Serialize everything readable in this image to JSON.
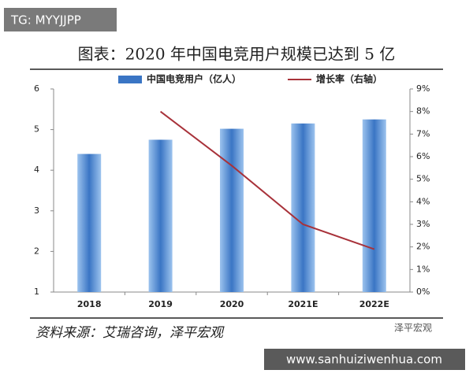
{
  "tag": "TG: MYYJJPP",
  "watermark": "泽平宏观",
  "url": "www.sanhuiziwenhua.com",
  "chart_data": {
    "type": "bar-line",
    "title": "图表：2020 年中国电竞用户规模已达到 5 亿",
    "source": "资料来源：艾瑞咨询，泽平宏观",
    "categories": [
      "2018",
      "2019",
      "2020",
      "2021E",
      "2022E"
    ],
    "series": [
      {
        "name": "中国电竞用户（亿人）",
        "color": "#3a75c4",
        "type": "bar",
        "values": [
          4.4,
          4.75,
          5.02,
          5.15,
          5.25
        ]
      },
      {
        "name": "增长率（右轴）",
        "color": "#a8323a",
        "type": "line",
        "axis": "y2",
        "values": [
          null,
          8.0,
          5.6,
          3.0,
          1.9
        ]
      }
    ],
    "ylim": [
      1,
      6
    ],
    "yticks": [
      1,
      2,
      3,
      4,
      5,
      6
    ],
    "y2lim": [
      0,
      9
    ],
    "y2ticks": [
      {
        "value": 0,
        "label": "0%"
      },
      {
        "value": 1,
        "label": "1%"
      },
      {
        "value": 2,
        "label": "2%"
      },
      {
        "value": 3,
        "label": "3%"
      },
      {
        "value": 4,
        "label": "4%"
      },
      {
        "value": 5,
        "label": "5%"
      },
      {
        "value": 6,
        "label": "6%"
      },
      {
        "value": 7,
        "label": "7%"
      },
      {
        "value": 8,
        "label": "8%"
      },
      {
        "value": 9,
        "label": "9%"
      }
    ],
    "legend": "top"
  }
}
